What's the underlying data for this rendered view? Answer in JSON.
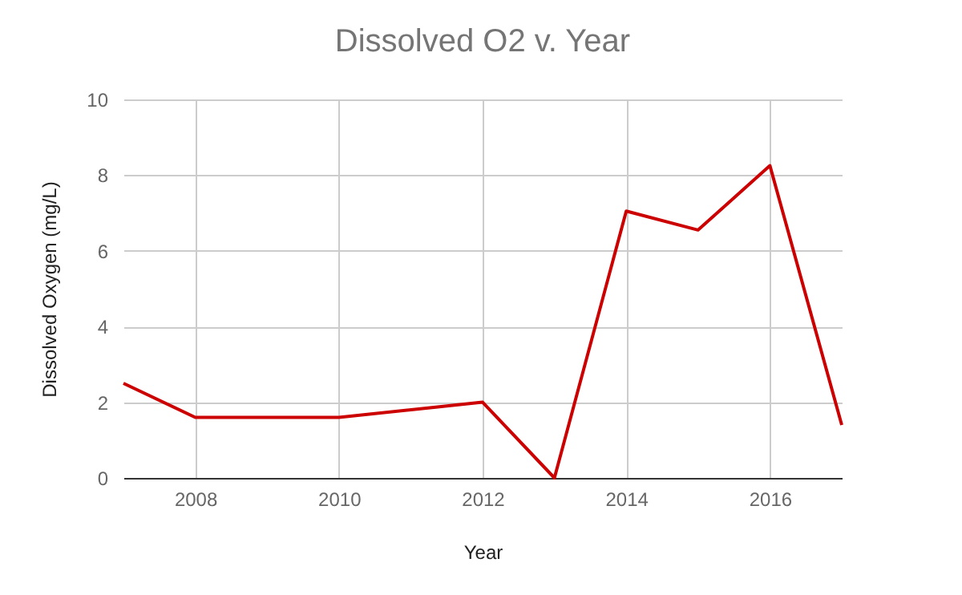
{
  "chart_data": {
    "type": "line",
    "title": "Dissolved O2  v. Year",
    "xlabel": "Year",
    "ylabel": "Dissolved Oxygen (mg/L)",
    "x": [
      2007,
      2008,
      2010,
      2012,
      2013,
      2014,
      2015,
      2016,
      2017
    ],
    "series": [
      {
        "color": "#cc0000",
        "values": [
          2.5,
          1.6,
          1.6,
          2.0,
          0,
          7.05,
          6.55,
          8.25,
          1.4
        ]
      }
    ],
    "xlim": [
      2007,
      2017
    ],
    "xticks": [
      2008,
      2010,
      2012,
      2014,
      2016
    ],
    "ylim": [
      0,
      10
    ],
    "yticks": [
      0,
      2,
      4,
      6,
      8,
      10
    ],
    "grid": true,
    "marker": "none",
    "line_style": "solid"
  }
}
